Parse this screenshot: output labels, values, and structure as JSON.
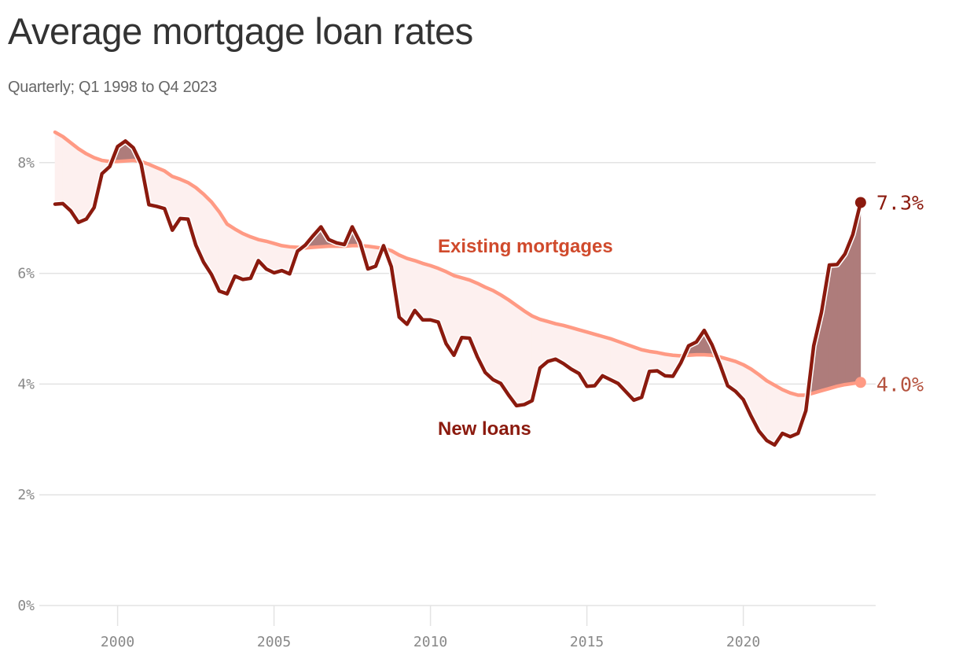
{
  "header": {
    "title": "Average mortgage loan rates",
    "subtitle": "Quarterly; Q1 1998 to Q4 2023"
  },
  "colors": {
    "new_loans": "#8b1a0e",
    "existing": "#ff9a84",
    "existing_label": "#d04a2c",
    "gap_fill_below": "#fdf0ef",
    "gap_fill_above": "#ae7c7b",
    "grid": "#e3e3e3",
    "axis_text": "#888888"
  },
  "labels": {
    "existing": "Existing mortgages",
    "new": "New loans",
    "new_end": "7.3%",
    "existing_end": "4.0%"
  },
  "y_ticks": [
    {
      "value": 0,
      "label": "0%"
    },
    {
      "value": 2,
      "label": "2%"
    },
    {
      "value": 4,
      "label": "4%"
    },
    {
      "value": 6,
      "label": "6%"
    },
    {
      "value": 8,
      "label": "8%"
    }
  ],
  "x_ticks": [
    {
      "value": 2000,
      "label": "2000"
    },
    {
      "value": 2005,
      "label": "2005"
    },
    {
      "value": 2010,
      "label": "2010"
    },
    {
      "value": 2015,
      "label": "2015"
    },
    {
      "value": 2020,
      "label": "2020"
    }
  ],
  "chart_data": {
    "type": "line",
    "title": "Average mortgage loan rates",
    "subtitle": "Quarterly; Q1 1998 to Q4 2023",
    "xlabel": "",
    "ylabel": "",
    "x_start": "Q1 1998",
    "x_end": "Q4 2023",
    "frequency": "quarterly",
    "ylim": [
      0,
      8.6
    ],
    "xlim": [
      1998,
      2024
    ],
    "grid": true,
    "legend": "inline labels",
    "annotations": [
      "Existing mortgages",
      "New loans",
      "7.3%",
      "4.0%"
    ],
    "series": [
      {
        "name": "New loans",
        "end_label": "7.3%",
        "values": [
          7.25,
          7.26,
          7.13,
          6.92,
          6.98,
          7.19,
          7.8,
          7.93,
          8.29,
          8.39,
          8.27,
          7.98,
          7.24,
          7.21,
          7.17,
          6.78,
          6.99,
          6.98,
          6.51,
          6.2,
          5.98,
          5.68,
          5.63,
          5.95,
          5.89,
          5.91,
          6.23,
          6.08,
          6.01,
          6.05,
          5.99,
          6.4,
          6.51,
          6.68,
          6.84,
          6.61,
          6.55,
          6.52,
          6.84,
          6.56,
          6.08,
          6.13,
          6.5,
          6.12,
          5.21,
          5.08,
          5.33,
          5.16,
          5.16,
          5.12,
          4.73,
          4.52,
          4.84,
          4.83,
          4.49,
          4.21,
          4.08,
          4.01,
          3.8,
          3.61,
          3.63,
          3.7,
          4.29,
          4.41,
          4.45,
          4.37,
          4.27,
          4.19,
          3.96,
          3.97,
          4.15,
          4.08,
          4.01,
          3.86,
          3.71,
          3.76,
          4.23,
          4.24,
          4.15,
          4.14,
          4.38,
          4.69,
          4.76,
          4.97,
          4.71,
          4.36,
          3.97,
          3.87,
          3.72,
          3.42,
          3.15,
          2.98,
          2.9,
          3.11,
          3.05,
          3.11,
          3.52,
          4.69,
          5.3,
          6.15,
          6.16,
          6.35,
          6.7,
          7.28
        ]
      },
      {
        "name": "Existing mortgages",
        "end_label": "4.0%",
        "values": [
          8.55,
          8.47,
          8.36,
          8.25,
          8.16,
          8.09,
          8.04,
          8.02,
          8.02,
          8.03,
          8.04,
          8.02,
          7.97,
          7.91,
          7.85,
          7.75,
          7.7,
          7.64,
          7.55,
          7.43,
          7.29,
          7.11,
          6.89,
          6.8,
          6.72,
          6.66,
          6.61,
          6.58,
          6.54,
          6.5,
          6.48,
          6.47,
          6.46,
          6.47,
          6.48,
          6.49,
          6.49,
          6.49,
          6.5,
          6.5,
          6.49,
          6.47,
          6.45,
          6.41,
          6.33,
          6.27,
          6.23,
          6.18,
          6.14,
          6.09,
          6.03,
          5.96,
          5.92,
          5.88,
          5.82,
          5.75,
          5.69,
          5.61,
          5.52,
          5.42,
          5.32,
          5.23,
          5.17,
          5.13,
          5.09,
          5.06,
          5.02,
          4.98,
          4.94,
          4.9,
          4.86,
          4.82,
          4.77,
          4.72,
          4.67,
          4.62,
          4.59,
          4.57,
          4.54,
          4.52,
          4.51,
          4.52,
          4.53,
          4.53,
          4.52,
          4.49,
          4.45,
          4.41,
          4.35,
          4.27,
          4.17,
          4.06,
          3.98,
          3.9,
          3.84,
          3.8,
          3.8,
          3.84,
          3.88,
          3.92,
          3.96,
          3.99,
          4.01,
          4.03
        ]
      }
    ]
  }
}
